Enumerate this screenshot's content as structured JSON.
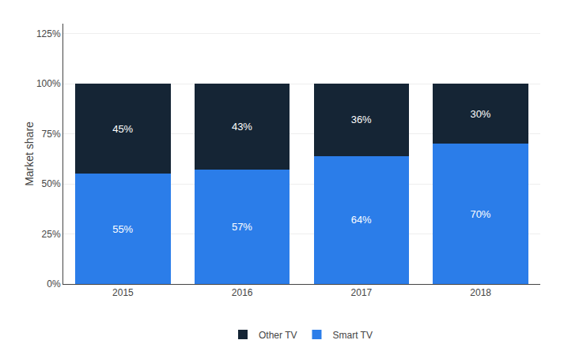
{
  "chart_data": {
    "type": "bar",
    "categories": [
      "2015",
      "2016",
      "2017",
      "2018"
    ],
    "series": [
      {
        "name": "Smart TV",
        "color": "#2b7de9",
        "values": [
          55,
          57,
          64,
          70
        ],
        "value_labels": [
          "55%",
          "57%",
          "64%",
          "70%"
        ]
      },
      {
        "name": "Other TV",
        "color": "#152535",
        "values": [
          45,
          43,
          36,
          30
        ],
        "value_labels": [
          "45%",
          "43%",
          "36%",
          "30%"
        ]
      }
    ],
    "ylabel": "Market share",
    "ylim": [
      0,
      130
    ],
    "yticks": [
      {
        "value": 0,
        "label": "0%"
      },
      {
        "value": 25,
        "label": "25%"
      },
      {
        "value": 50,
        "label": "50%"
      },
      {
        "value": 75,
        "label": "75%"
      },
      {
        "value": 100,
        "label": "100%"
      },
      {
        "value": 125,
        "label": "125%"
      }
    ],
    "stacked": true,
    "data_labels": true,
    "grid": true,
    "legend": "bottom"
  }
}
